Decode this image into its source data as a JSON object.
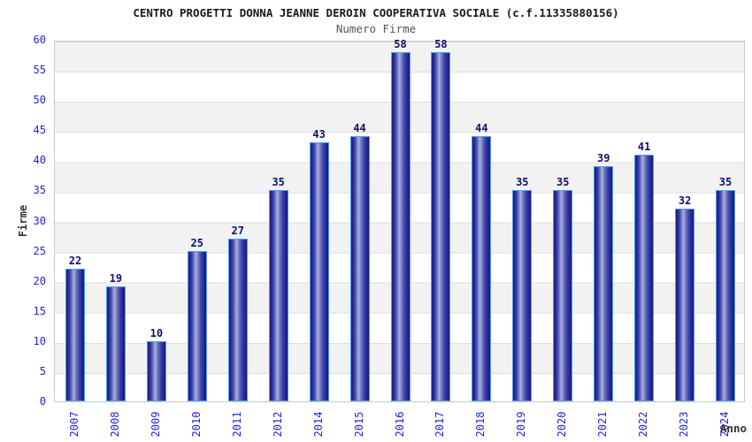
{
  "chart_data": {
    "type": "bar",
    "title": "CENTRO PROGETTI DONNA JEANNE DEROIN COOPERATIVA SOCIALE (c.f.11335880156)",
    "subtitle": "Numero Firme",
    "xlabel": "Anno",
    "ylabel": "Firme",
    "categories": [
      "2007",
      "2008",
      "2009",
      "2010",
      "2011",
      "2012",
      "2014",
      "2015",
      "2016",
      "2017",
      "2018",
      "2019",
      "2020",
      "2021",
      "2022",
      "2023",
      "2024"
    ],
    "values": [
      22,
      19,
      10,
      25,
      27,
      35,
      43,
      44,
      58,
      58,
      44,
      35,
      35,
      39,
      41,
      32,
      35
    ],
    "ylim": [
      0,
      60
    ],
    "ytick_step": 5,
    "grid": "horizontal-bands-alternating",
    "legend": "none",
    "value_labels": "above-bars",
    "colors": {
      "bar_dark": "#181884",
      "bar_light": "#aab1dd",
      "bar_outline": "#4d9ef2",
      "tick_label": "#2323d7",
      "value_label": "#10106a",
      "band_gray": "#f2f2f2",
      "band_white": "#ffffff",
      "gridline": "#dddddd",
      "plot_border": "#c9c9c9",
      "title": "#1a1a1a",
      "subtitle": "#555555",
      "axis_title": "#333333"
    }
  }
}
